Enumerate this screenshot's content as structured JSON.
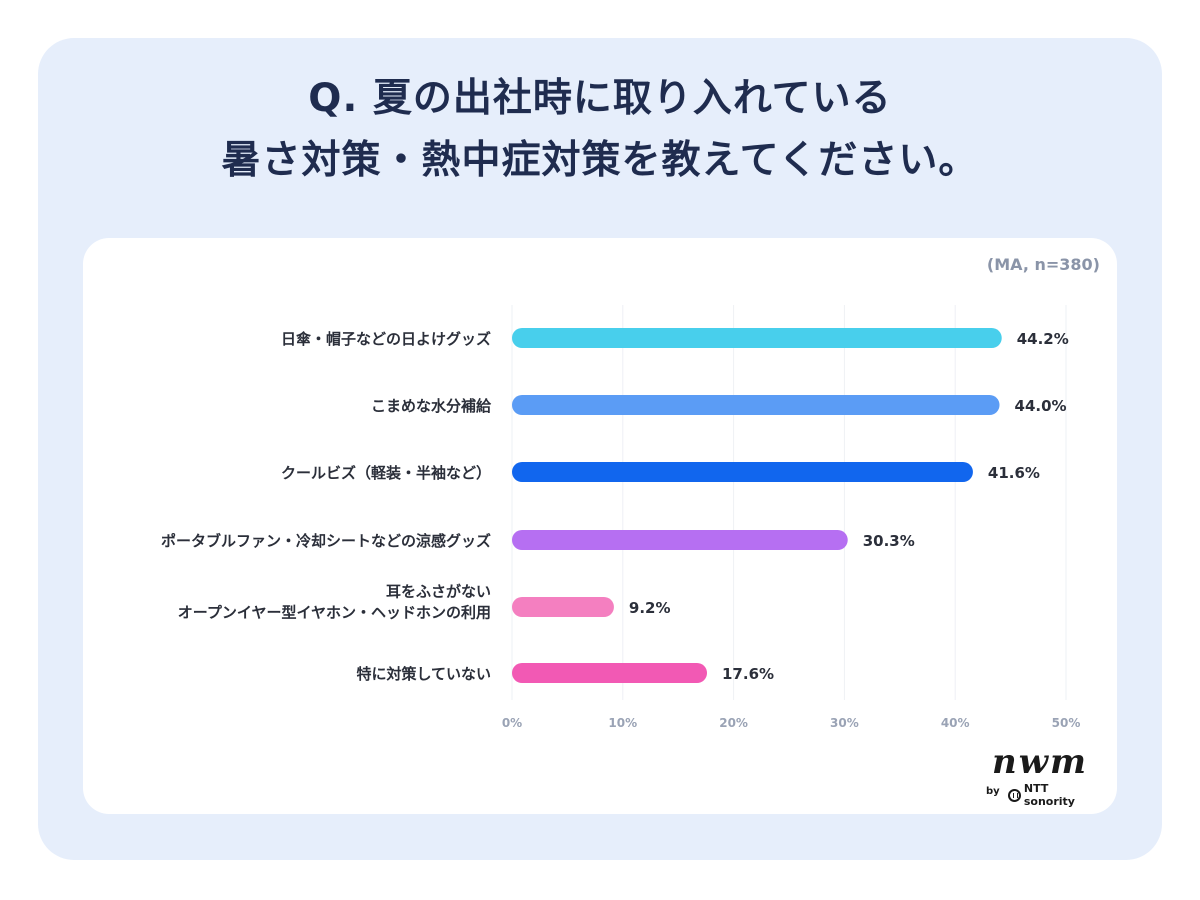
{
  "title": {
    "line1": "Q. 夏の出社時に取り入れている",
    "line2": "暑さ対策・熱中症対策を教えてください。"
  },
  "note": "(MA, n=380)",
  "logo": {
    "word": "nwm",
    "by": "by",
    "company": "NTT sonority"
  },
  "chart_data": {
    "type": "bar",
    "orientation": "horizontal",
    "categories": [
      [
        "日傘・帽子などの日よけグッズ"
      ],
      [
        "こまめな水分補給"
      ],
      [
        "クールビズ（軽装・半袖など）"
      ],
      [
        "ポータブルファン・冷却シートなどの涼感グッズ"
      ],
      [
        "耳をふさがない",
        "オープンイヤー型イヤホン・ヘッドホンの利用"
      ],
      [
        "特に対策していない"
      ]
    ],
    "values": [
      44.2,
      44.0,
      41.6,
      30.3,
      9.2,
      17.6
    ],
    "value_labels": [
      "44.2%",
      "44.0%",
      "41.6%",
      "30.3%",
      "9.2%",
      "17.6%"
    ],
    "colors": [
      "#48cfec",
      "#5b9cf5",
      "#1166ee",
      "#b66ff2",
      "#f47fc0",
      "#f259b4"
    ],
    "xlim": [
      0,
      50
    ],
    "ticks": [
      "0%",
      "10%",
      "20%",
      "30%",
      "40%",
      "50%"
    ],
    "grid": true
  }
}
